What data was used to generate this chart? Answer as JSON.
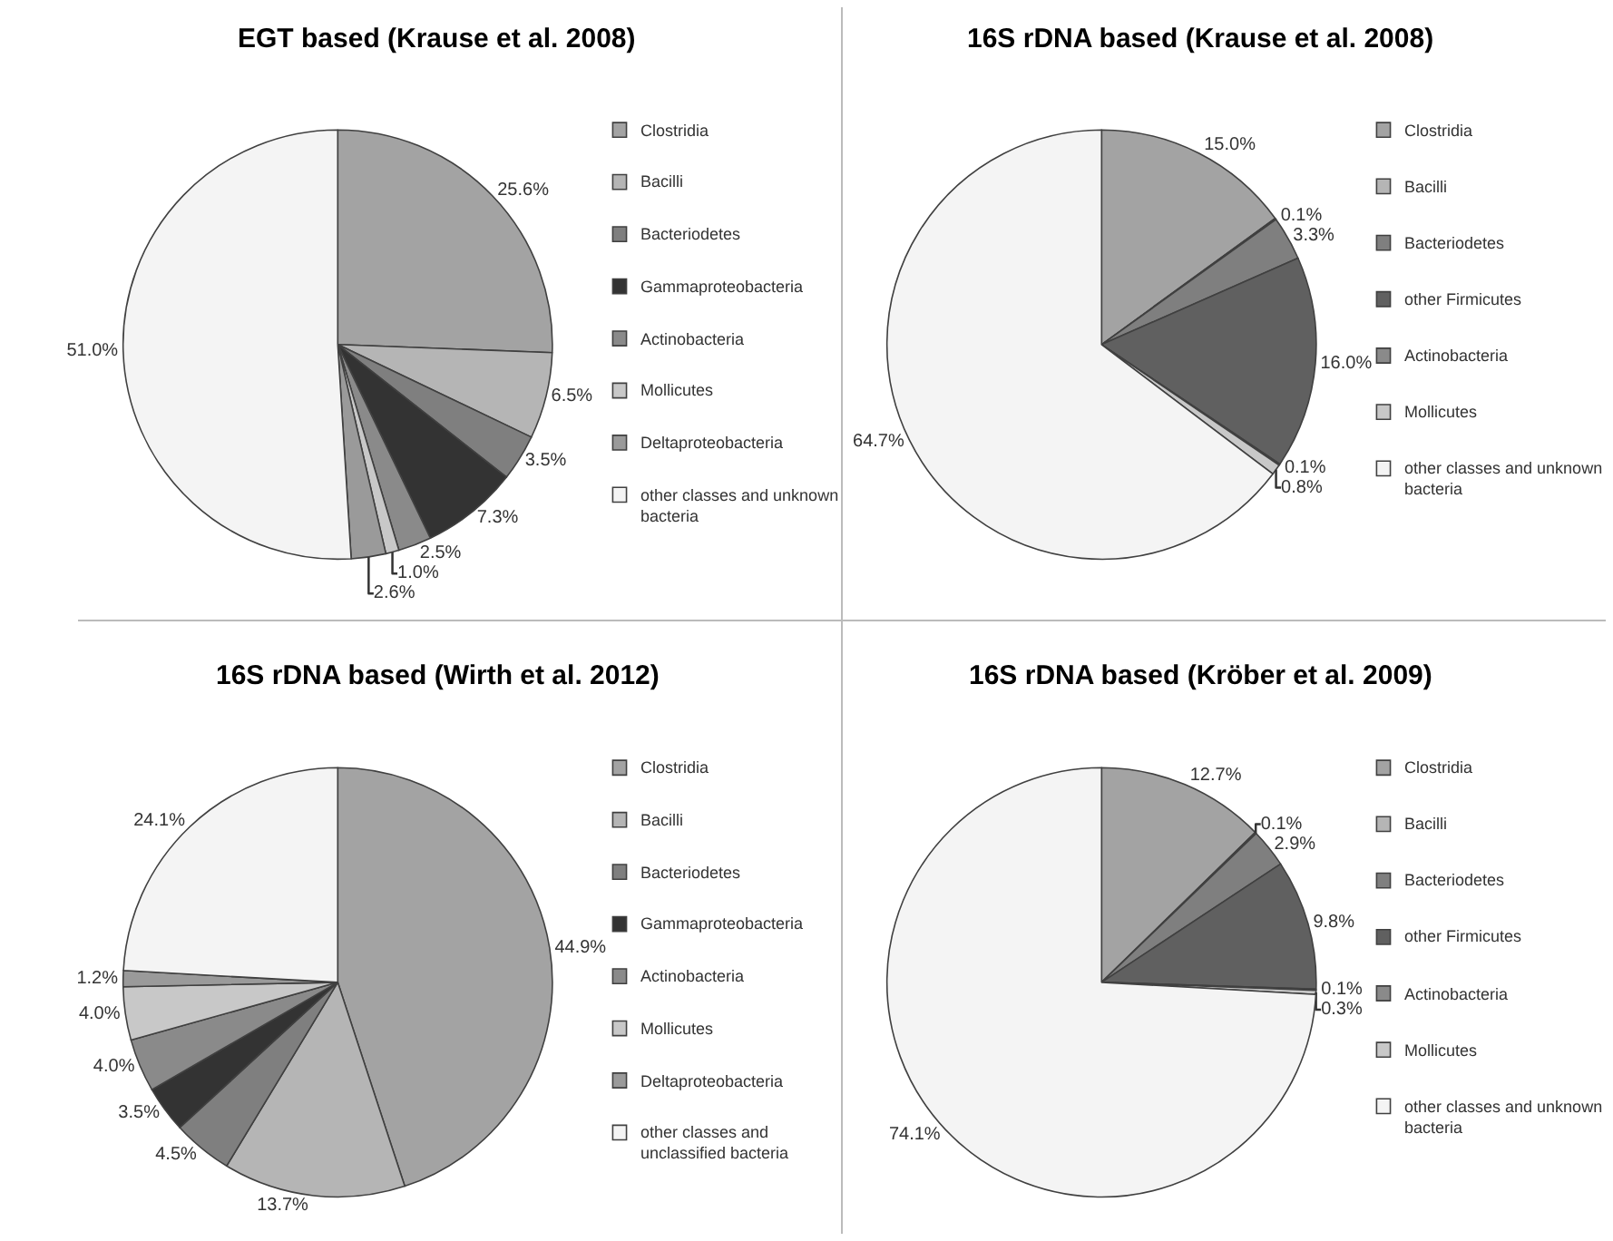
{
  "chart_data": [
    {
      "type": "pie",
      "title": "EGT based (Krause et al. 2008)",
      "legend": "right",
      "categories": [
        "Clostridia",
        "Bacilli",
        "Bacteriodetes",
        "Gammaproteobacteria",
        "Actinobacteria",
        "Mollicutes",
        "Deltaproteobacteria",
        "other classes and unknown bacteria"
      ],
      "values": [
        25.6,
        6.5,
        3.5,
        7.3,
        2.5,
        1.0,
        2.6,
        51.0
      ],
      "value_labels": [
        "25.6%",
        "6.5%",
        "3.5%",
        "7.3%",
        "2.5%",
        "1.0%",
        "2.6%",
        "51.0%"
      ],
      "colors": [
        "#a3a3a3",
        "#b5b5b5",
        "#7f7f7f",
        "#333333",
        "#8a8a8a",
        "#c8c8c8",
        "#9a9a9a",
        "#f4f4f4"
      ]
    },
    {
      "type": "pie",
      "title": "16S rDNA based (Krause et al. 2008)",
      "legend": "right",
      "categories": [
        "Clostridia",
        "Bacilli",
        "Bacteriodetes",
        "other Firmicutes",
        "Actinobacteria",
        "Mollicutes",
        "other classes and unknown bacteria"
      ],
      "values": [
        15.0,
        0.1,
        3.3,
        16.0,
        0.1,
        0.8,
        64.7
      ],
      "value_labels": [
        "15.0%",
        "0.1%",
        "3.3%",
        "16.0%",
        "0.1%",
        "0.8%",
        "64.7%"
      ],
      "colors": [
        "#a3a3a3",
        "#b5b5b5",
        "#7f7f7f",
        "#606060",
        "#8a8a8a",
        "#c8c8c8",
        "#f4f4f4"
      ]
    },
    {
      "type": "pie",
      "title": "16S rDNA based (Wirth et al. 2012)",
      "legend": "right",
      "categories": [
        "Clostridia",
        "Bacilli",
        "Bacteriodetes",
        "Gammaproteobacteria",
        "Actinobacteria",
        "Mollicutes",
        "Deltaproteobacteria",
        "other classes and unclassified bacteria"
      ],
      "values": [
        44.9,
        13.7,
        4.5,
        3.5,
        4.0,
        4.0,
        1.2,
        24.1
      ],
      "value_labels": [
        "44.9%",
        "13.7%",
        "4.5%",
        "3.5%",
        "4.0%",
        "4.0%",
        "1.2%",
        "24.1%"
      ],
      "colors": [
        "#a3a3a3",
        "#b5b5b5",
        "#7f7f7f",
        "#333333",
        "#8a8a8a",
        "#c8c8c8",
        "#9a9a9a",
        "#f4f4f4"
      ]
    },
    {
      "type": "pie",
      "title": "16S rDNA based (Kröber et al. 2009)",
      "legend": "right",
      "categories": [
        "Clostridia",
        "Bacilli",
        "Bacteriodetes",
        "other Firmicutes",
        "Actinobacteria",
        "Mollicutes",
        "other classes and unknown bacteria"
      ],
      "values": [
        12.7,
        0.1,
        2.9,
        9.8,
        0.1,
        0.3,
        74.1
      ],
      "value_labels": [
        "12.7%",
        "0.1%",
        "2.9%",
        "9.8%",
        "0.1%",
        "0.3%",
        "74.1%"
      ],
      "colors": [
        "#a3a3a3",
        "#b5b5b5",
        "#7f7f7f",
        "#606060",
        "#8a8a8a",
        "#c8c8c8",
        "#f4f4f4"
      ]
    }
  ]
}
